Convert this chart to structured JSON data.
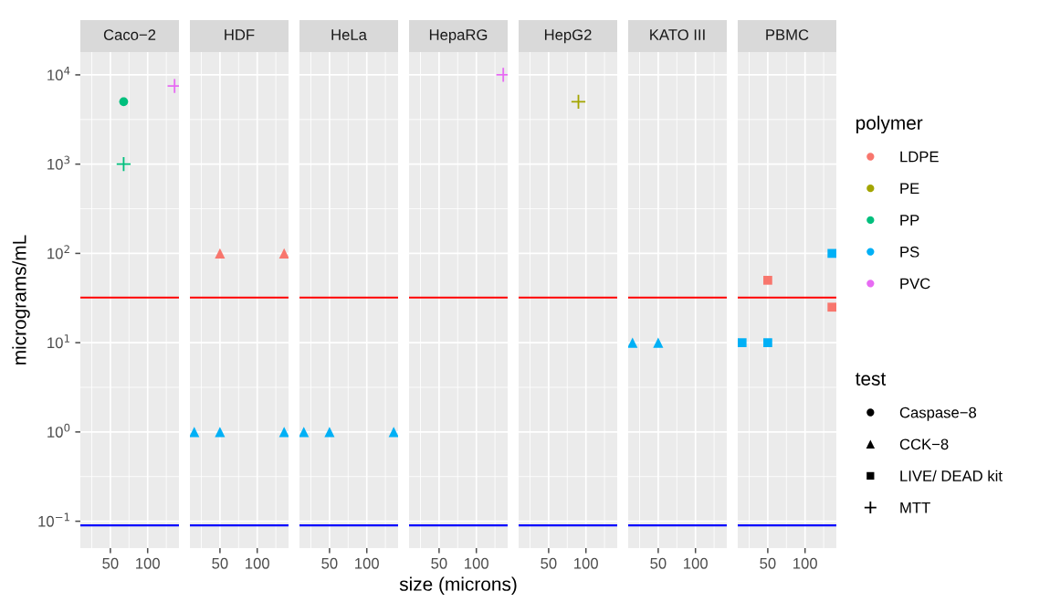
{
  "chart_data": [
    {
      "type": "scatter",
      "title": "Caco−2",
      "ylabel": "micrograms/mL",
      "log": "xy",
      "grid": true,
      "xlim": [
        28.6,
        179
      ],
      "xticks": [
        50,
        100
      ],
      "ylim": [
        0.05,
        18000
      ],
      "yticks": [
        {
          "value": 0.1,
          "label": "10$^{−1}$"
        },
        {
          "value": 1,
          "label": "10$^{0}$"
        },
        {
          "value": 10,
          "label": "10$^{1}$"
        },
        {
          "value": 100,
          "label": "10$^{2}$"
        },
        {
          "value": 1000,
          "label": "10$^{3}$"
        },
        {
          "value": 10000,
          "label": "10$^{4}$"
        }
      ],
      "ref_lines": [
        {
          "axis": "y",
          "value": 32,
          "color": "#ff0000"
        },
        {
          "axis": "y",
          "value": 0.09,
          "color": "#0000ff"
        }
      ],
      "series": [
        {
          "color": "#00bf7d",
          "marker": "circle",
          "x": [
            64
          ],
          "values": [
            5000
          ]
        },
        {
          "color": "#00bf7d",
          "marker": "cross",
          "x": [
            64
          ],
          "values": [
            1000
          ]
        },
        {
          "color": "#e76bf3",
          "marker": "cross",
          "x": [
            165
          ],
          "values": [
            7500
          ]
        }
      ]
    },
    {
      "type": "scatter",
      "title": "HDF",
      "log": "xy",
      "grid": true,
      "tick_labels": "x",
      "xlim": [
        28.6,
        179
      ],
      "xticks": [
        50,
        100
      ],
      "ylim": [
        0.05,
        18000
      ],
      "ref_lines": [
        {
          "axis": "y",
          "value": 32,
          "color": "#ff0000"
        },
        {
          "axis": "y",
          "value": 0.09,
          "color": "#0000ff"
        }
      ],
      "series": [
        {
          "color": "#f8766d",
          "marker": "triangle",
          "x": [
            50,
            165
          ],
          "values": [
            100,
            100
          ]
        },
        {
          "color": "#00b0f6",
          "marker": "triangle",
          "x": [
            31,
            50,
            165
          ],
          "values": [
            1,
            1,
            1
          ]
        }
      ]
    },
    {
      "type": "scatter",
      "title": "HeLa",
      "log": "xy",
      "grid": true,
      "tick_labels": "x",
      "xlim": [
        28.6,
        179
      ],
      "xticks": [
        50,
        100
      ],
      "ylim": [
        0.05,
        18000
      ],
      "ref_lines": [
        {
          "axis": "y",
          "value": 32,
          "color": "#ff0000"
        },
        {
          "axis": "y",
          "value": 0.09,
          "color": "#0000ff"
        }
      ],
      "series": [
        {
          "color": "#00b0f6",
          "marker": "triangle",
          "x": [
            31,
            50,
            165
          ],
          "values": [
            1,
            1,
            1
          ]
        }
      ]
    },
    {
      "type": "scatter",
      "title": "HepaRG",
      "xlabel": "size (microns)",
      "log": "xy",
      "grid": true,
      "tick_labels": "x",
      "xlim": [
        28.6,
        179
      ],
      "xticks": [
        50,
        100
      ],
      "ylim": [
        0.05,
        18000
      ],
      "ref_lines": [
        {
          "axis": "y",
          "value": 32,
          "color": "#ff0000"
        },
        {
          "axis": "y",
          "value": 0.09,
          "color": "#0000ff"
        }
      ],
      "series": [
        {
          "color": "#e76bf3",
          "marker": "cross",
          "x": [
            165
          ],
          "values": [
            10000
          ]
        }
      ]
    },
    {
      "type": "scatter",
      "title": "HepG2",
      "log": "xy",
      "grid": true,
      "tick_labels": "x",
      "xlim": [
        28.6,
        179
      ],
      "xticks": [
        50,
        100
      ],
      "ylim": [
        0.05,
        18000
      ],
      "ref_lines": [
        {
          "axis": "y",
          "value": 32,
          "color": "#ff0000"
        },
        {
          "axis": "y",
          "value": 0.09,
          "color": "#0000ff"
        }
      ],
      "series": [
        {
          "color": "#a3a500",
          "marker": "cross",
          "x": [
            87
          ],
          "values": [
            5000
          ]
        }
      ]
    },
    {
      "type": "scatter",
      "title": "KATO III",
      "log": "xy",
      "grid": true,
      "tick_labels": "x",
      "xlim": [
        28.6,
        179
      ],
      "xticks": [
        50,
        100
      ],
      "ylim": [
        0.05,
        18000
      ],
      "ref_lines": [
        {
          "axis": "y",
          "value": 32,
          "color": "#ff0000"
        },
        {
          "axis": "y",
          "value": 0.09,
          "color": "#0000ff"
        }
      ],
      "series": [
        {
          "color": "#00b0f6",
          "marker": "triangle",
          "x": [
            31,
            50
          ],
          "values": [
            10,
            10
          ]
        }
      ]
    },
    {
      "type": "scatter",
      "title": "PBMC",
      "log": "xy",
      "grid": true,
      "tick_labels": "x",
      "xlim": [
        28.6,
        179
      ],
      "xticks": [
        50,
        100
      ],
      "ylim": [
        0.05,
        18000
      ],
      "ref_lines": [
        {
          "axis": "y",
          "value": 32,
          "color": "#ff0000"
        },
        {
          "axis": "y",
          "value": 0.09,
          "color": "#0000ff"
        }
      ],
      "series": [
        {
          "color": "#00b0f6",
          "marker": "square",
          "x": [
            31,
            50,
            165
          ],
          "values": [
            10,
            10,
            100
          ]
        },
        {
          "color": "#f8766d",
          "marker": "square",
          "x": [
            50,
            165
          ],
          "values": [
            50,
            25
          ]
        }
      ]
    },
    {
      "type": "other",
      "legend_title": "polymer",
      "legend": "right",
      "series": [
        {
          "name": "LDPE",
          "color": "#f8766d",
          "marker": "circle"
        },
        {
          "name": "PE",
          "color": "#a3a500",
          "marker": "circle"
        },
        {
          "name": "PP",
          "color": "#00bf7d",
          "marker": "circle"
        },
        {
          "name": "PS",
          "color": "#00b0f6",
          "marker": "circle"
        },
        {
          "name": "PVC",
          "color": "#e76bf3",
          "marker": "circle"
        }
      ]
    },
    {
      "type": "other",
      "legend_title": "test",
      "legend": "right",
      "series": [
        {
          "name": "Caspase−8",
          "color": "#000000",
          "marker": "circle"
        },
        {
          "name": "CCK−8",
          "color": "#000000",
          "marker": "triangle"
        },
        {
          "name": "LIVE/ DEAD kit",
          "color": "#000000",
          "marker": "square"
        },
        {
          "name": "MTT",
          "color": "#000000",
          "marker": "cross"
        }
      ]
    }
  ]
}
